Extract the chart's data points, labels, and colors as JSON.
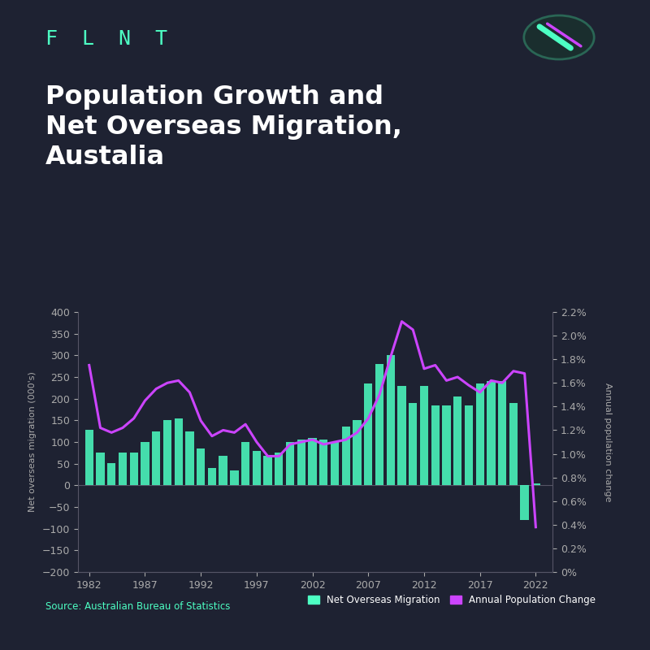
{
  "background_color": "#1e2232",
  "title": "Population Growth and\nNet Overseas Migration,\nAustalia",
  "brand": "F  L  N  T",
  "source_text": "Source: Australian Bureau of Statistics",
  "bar_color": "#4dffc3",
  "line_color": "#cc44ff",
  "years": [
    1982,
    1983,
    1984,
    1985,
    1986,
    1987,
    1988,
    1989,
    1990,
    1991,
    1992,
    1993,
    1994,
    1995,
    1996,
    1997,
    1998,
    1999,
    2000,
    2001,
    2002,
    2003,
    2004,
    2005,
    2006,
    2007,
    2008,
    2009,
    2010,
    2011,
    2012,
    2013,
    2014,
    2015,
    2016,
    2017,
    2018,
    2019,
    2020,
    2021,
    2022
  ],
  "nom_values": [
    128,
    75,
    52,
    75,
    75,
    100,
    125,
    150,
    155,
    125,
    85,
    40,
    68,
    35,
    100,
    80,
    68,
    75,
    100,
    105,
    110,
    105,
    100,
    135,
    150,
    235,
    280,
    300,
    230,
    190,
    230,
    185,
    185,
    205,
    185,
    235,
    240,
    240,
    190,
    -80,
    5
  ],
  "pop_change_pct": [
    1.75,
    1.22,
    1.18,
    1.22,
    1.3,
    1.45,
    1.55,
    1.6,
    1.62,
    1.52,
    1.28,
    1.15,
    1.2,
    1.18,
    1.25,
    1.1,
    0.98,
    0.98,
    1.08,
    1.1,
    1.12,
    1.08,
    1.1,
    1.12,
    1.18,
    1.3,
    1.5,
    1.82,
    2.12,
    2.05,
    1.72,
    1.75,
    1.62,
    1.65,
    1.58,
    1.52,
    1.62,
    1.6,
    1.7,
    1.68,
    0.38
  ],
  "ylabel_left": "Net overseas migration (000's)",
  "ylabel_right": "Annual population change",
  "legend_bar": "Net Overseas Migration",
  "legend_line": "Annual Population Change",
  "ylim_left": [
    -200,
    400
  ],
  "xticks": [
    1982,
    1987,
    1992,
    1997,
    2002,
    2007,
    2012,
    2017,
    2022
  ],
  "yticks_left": [
    -200,
    -150,
    -100,
    -50,
    0,
    50,
    100,
    150,
    200,
    250,
    300,
    350,
    400
  ],
  "yticks_right_vals": [
    0.0,
    0.2,
    0.4,
    0.6,
    0.8,
    1.0,
    1.2,
    1.4,
    1.6,
    1.8,
    2.0,
    2.2
  ],
  "yticks_right_labels": [
    "0%",
    "0.2%",
    "0.4%",
    "0.6%",
    "0.8%",
    "1.0%",
    "1.2%",
    "1.4%",
    "1.6%",
    "1.8%",
    "2.0%",
    "2.2%"
  ]
}
